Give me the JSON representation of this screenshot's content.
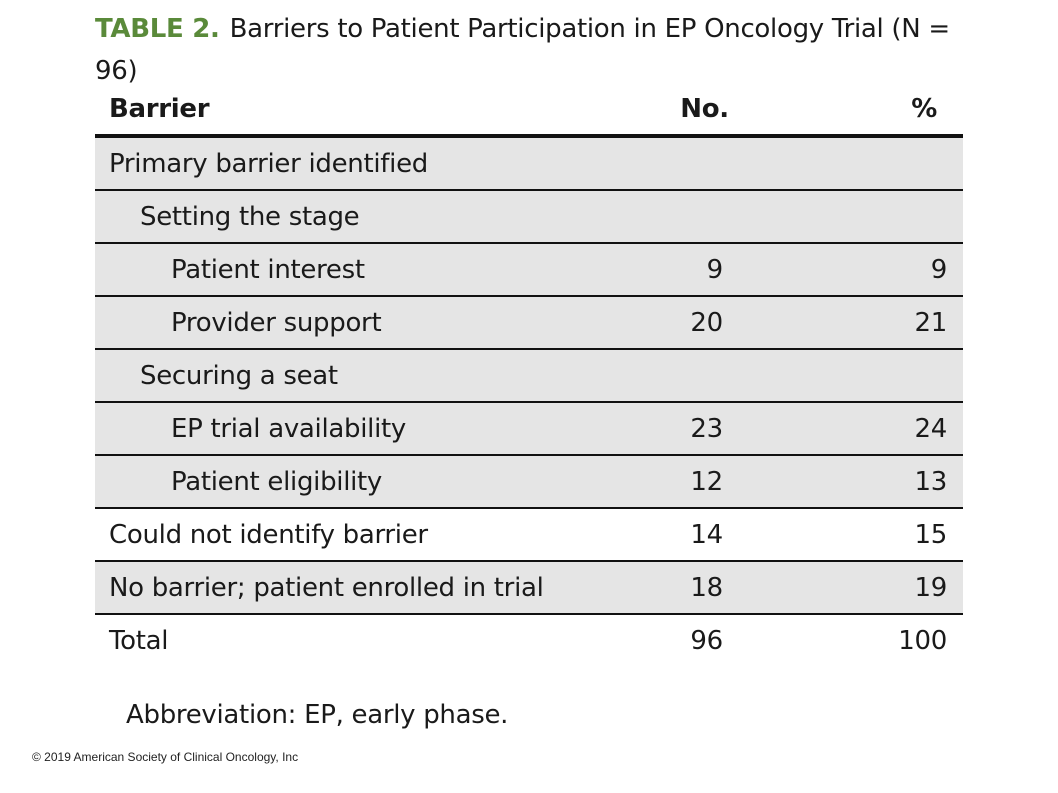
{
  "title": {
    "label": "TABLE 2.",
    "text": "Barriers to Patient Participation in EP Oncology Trial (N = 96)"
  },
  "table": {
    "headers": [
      "Barrier",
      "No.",
      "%"
    ],
    "rows": [
      {
        "label": "Primary barrier identified",
        "no": "",
        "pct": ""
      },
      {
        "label": "Setting the stage",
        "no": "",
        "pct": ""
      },
      {
        "label": "Patient interest",
        "no": "9",
        "pct": "9"
      },
      {
        "label": "Provider support",
        "no": "20",
        "pct": "21"
      },
      {
        "label": "Securing a seat",
        "no": "",
        "pct": ""
      },
      {
        "label": "EP trial availability",
        "no": "23",
        "pct": "24"
      },
      {
        "label": "Patient eligibility",
        "no": "12",
        "pct": "13"
      },
      {
        "label": "Could not identify barrier",
        "no": "14",
        "pct": "15"
      },
      {
        "label": "No barrier; patient enrolled in trial",
        "no": "18",
        "pct": "19"
      },
      {
        "label": "Total",
        "no": "96",
        "pct": "100"
      }
    ]
  },
  "footnote": "Abbreviation: EP, early phase.",
  "copyright": "© 2019 American Society of Clinical Oncology, Inc",
  "colors": {
    "title_label": "#5a8a3a",
    "row_shading": "#e5e5e5",
    "rule": "#111111"
  }
}
